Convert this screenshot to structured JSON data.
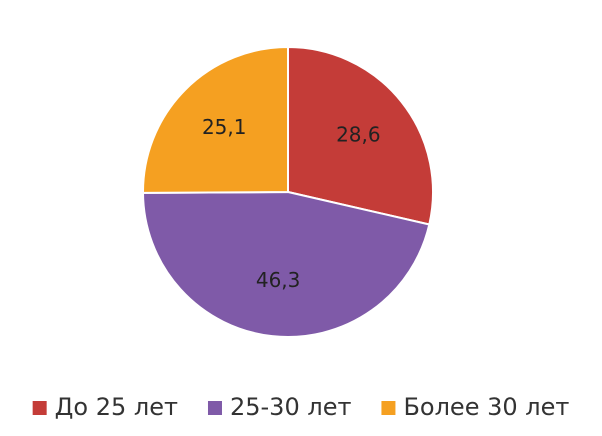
{
  "chart_data": {
    "type": "pie",
    "categories": [
      "До 25 лет",
      "25-30 лет",
      "Более 30 лет"
    ],
    "values": [
      28.6,
      46.3,
      25.1
    ],
    "value_labels": [
      "28,6",
      "46,3",
      "25,1"
    ],
    "colors": [
      "#c43c38",
      "#7f5aa8",
      "#f5a021"
    ],
    "legend": "bottom"
  }
}
